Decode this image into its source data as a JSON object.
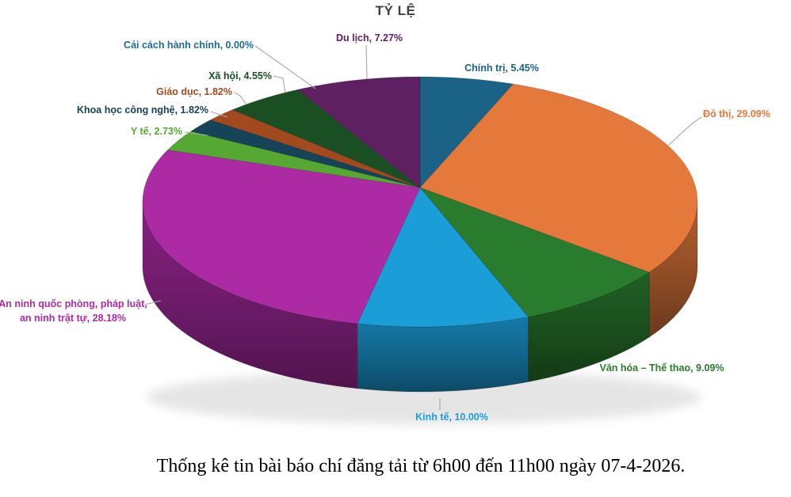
{
  "title": "TỶ LỆ",
  "caption": "Thống kê tin bài báo chí đăng tải từ 6h00 đến 11h00 ngày 07-4-2026.",
  "chart_data": {
    "type": "pie",
    "style": "3d",
    "title": "TỶ LỆ",
    "unit": "%",
    "start_angle_deg": 0,
    "direction": "clockwise",
    "legend": "none",
    "background_color": "#FFFFFF",
    "title_color": "#3F3F3F",
    "caption_color": "#000000",
    "leader_line_color": "#A6A6A6",
    "slices": [
      {
        "name": "Chính trị",
        "value": 5.45,
        "label": "Chính trị, 5.45%",
        "color": "#1B6386"
      },
      {
        "name": "Đô thị",
        "value": 29.09,
        "label": "Đô thị, 29.09%",
        "color": "#E4793B"
      },
      {
        "name": "Văn hóa – Thể thao",
        "value": 9.09,
        "label": "Văn hóa – Thể thao, 9.09%",
        "color": "#297B2D"
      },
      {
        "name": "Kinh tế",
        "value": 10.0,
        "label": "Kinh tế, 10.00%",
        "color": "#1B9DD8"
      },
      {
        "name": "An ninh quốc phòng, pháp luật, an ninh trật tự",
        "value": 28.18,
        "label_lines": [
          "An ninh quốc phòng, pháp luật,",
          "an ninh trật tự, 28.18%"
        ],
        "color": "#AC2BA5"
      },
      {
        "name": "Y tế",
        "value": 2.73,
        "label": "Y tế, 2.73%",
        "color": "#55A932"
      },
      {
        "name": "Khoa học công nghệ",
        "value": 1.82,
        "label": "Khoa học công nghệ, 1.82%",
        "color": "#164358"
      },
      {
        "name": "Giáo dục",
        "value": 1.82,
        "label": "Giáo dục, 1.82%",
        "color": "#A24A1E"
      },
      {
        "name": "Xã hội",
        "value": 4.55,
        "label": "Xã hội, 4.55%",
        "color": "#1A4F24"
      },
      {
        "name": "Cải cách hành chính",
        "value": 0.0,
        "label": "Cải cách hành chính, 0.00%",
        "color": "#1D6C8E"
      },
      {
        "name": "Du lịch",
        "value": 7.27,
        "label": "Du lịch, 7.27%",
        "color": "#5E2060"
      }
    ]
  }
}
